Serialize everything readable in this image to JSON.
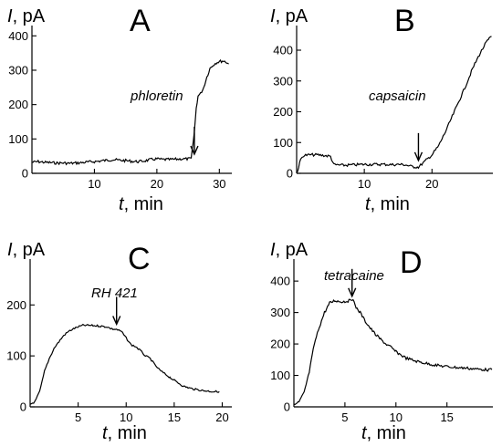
{
  "chart_data": [
    {
      "panel": "A",
      "type": "line",
      "ylabel_symbol": "I",
      "ylabel_unit": ", pA",
      "xlabel_symbol": "t",
      "xlabel_unit": ", min",
      "xlim": [
        0,
        32
      ],
      "ylim": [
        0,
        430
      ],
      "xticks": [
        10,
        20,
        30
      ],
      "yticks": [
        0,
        100,
        200,
        300,
        400
      ],
      "annotation": {
        "text": "phloretin",
        "x": 26,
        "y_arrow_tip": 45
      },
      "x": [
        0,
        1,
        2,
        3,
        4,
        5,
        6,
        7,
        8,
        9,
        10,
        11,
        12,
        13,
        14,
        15,
        16,
        17,
        18,
        19,
        20,
        21,
        22,
        23,
        24,
        25,
        25.5,
        26,
        26.3,
        26.6,
        27,
        27.5,
        28,
        28.5,
        29,
        29.5,
        30,
        30.5,
        31,
        31.5
      ],
      "y": [
        32,
        34,
        32,
        31,
        30,
        30,
        29,
        30,
        31,
        33,
        34,
        36,
        38,
        40,
        38,
        37,
        35,
        34,
        36,
        40,
        42,
        40,
        40,
        41,
        42,
        42,
        43,
        120,
        190,
        225,
        232,
        250,
        280,
        305,
        315,
        322,
        325,
        327,
        325,
        318
      ]
    },
    {
      "panel": "B",
      "type": "line",
      "ylabel_symbol": "I",
      "ylabel_unit": ", pA",
      "xlabel_symbol": "t",
      "xlabel_unit": ", min",
      "xlim": [
        0,
        29
      ],
      "ylim": [
        0,
        480
      ],
      "xticks": [
        10,
        20
      ],
      "yticks": [
        0,
        100,
        200,
        300,
        400
      ],
      "annotation": {
        "text": "capsaicin",
        "x": 18,
        "y_arrow_tip": 30
      },
      "x": [
        0,
        0.3,
        0.6,
        1,
        2,
        3,
        4,
        5,
        5.5,
        6,
        7,
        8,
        9,
        10,
        11,
        12,
        13,
        14,
        15,
        16,
        17,
        18,
        19,
        20,
        21,
        22,
        23,
        24,
        25,
        26,
        27,
        28,
        28.8
      ],
      "y": [
        0,
        20,
        45,
        58,
        60,
        60,
        58,
        55,
        28,
        27,
        26,
        27,
        28,
        29,
        29,
        29,
        29,
        28,
        29,
        28,
        22,
        20,
        40,
        60,
        90,
        135,
        185,
        235,
        285,
        340,
        385,
        425,
        445
      ]
    },
    {
      "panel": "C",
      "type": "line",
      "ylabel_symbol": "I",
      "ylabel_unit": ", pA",
      "xlabel_symbol": "t",
      "xlabel_unit": ", min",
      "xlim": [
        0,
        21
      ],
      "ylim": [
        0,
        290
      ],
      "xticks": [
        5,
        10,
        15,
        20
      ],
      "yticks": [
        0,
        100,
        200
      ],
      "annotation": {
        "text": "RH 421",
        "x": 9,
        "y_arrow_tip": 155
      },
      "x": [
        0,
        0.5,
        1,
        1.5,
        2,
        2.5,
        3,
        3.5,
        4,
        4.5,
        5,
        5.5,
        6,
        7,
        8,
        8.5,
        9,
        9.5,
        10,
        10.5,
        11,
        11.5,
        12,
        12.5,
        13,
        13.5,
        14,
        15,
        16,
        17,
        18,
        19,
        19.7
      ],
      "y": [
        5,
        10,
        30,
        70,
        95,
        115,
        128,
        140,
        148,
        153,
        157,
        160,
        160,
        159,
        157,
        153,
        152,
        148,
        135,
        122,
        118,
        110,
        100,
        95,
        82,
        72,
        65,
        52,
        40,
        35,
        32,
        30,
        30
      ]
    },
    {
      "panel": "D",
      "type": "line",
      "ylabel_symbol": "I",
      "ylabel_unit": ", pA",
      "xlabel_symbol": "t",
      "xlabel_unit": ", min",
      "xlim": [
        0,
        19.5
      ],
      "ylim": [
        0,
        470
      ],
      "xticks": [
        5,
        10,
        15
      ],
      "yticks": [
        0,
        100,
        200,
        300,
        400
      ],
      "annotation": {
        "text": "tetracaine",
        "x": 5.7,
        "y_arrow_tip": 340
      },
      "x": [
        0,
        0.5,
        1,
        1.5,
        2,
        2.5,
        3,
        3.5,
        4,
        4.5,
        5,
        5.5,
        5.8,
        6,
        6.5,
        7,
        7.5,
        8,
        8.5,
        9,
        9.5,
        10,
        11,
        12,
        13,
        14,
        15,
        16,
        17,
        18,
        19,
        19.4
      ],
      "y": [
        5,
        15,
        45,
        110,
        200,
        255,
        300,
        330,
        338,
        335,
        335,
        338,
        345,
        320,
        300,
        272,
        250,
        230,
        215,
        200,
        190,
        175,
        155,
        145,
        138,
        132,
        128,
        125,
        123,
        120,
        118,
        118
      ]
    }
  ]
}
